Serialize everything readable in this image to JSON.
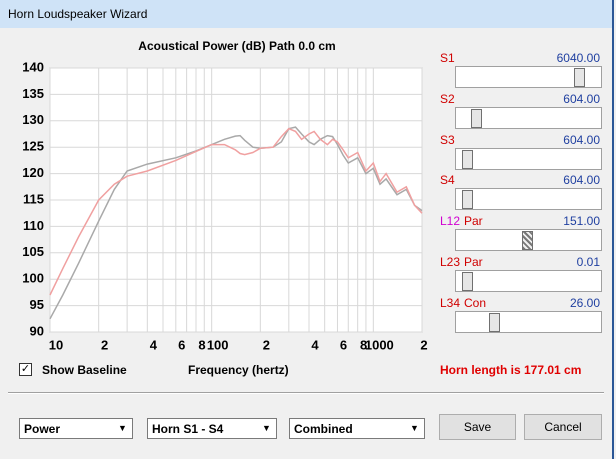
{
  "window": {
    "title": "Horn Loudspeaker Wizard"
  },
  "chart_data": {
    "type": "line",
    "title": "Acoustical Power (dB)   Path 0.0 cm",
    "x_label": "Frequency (hertz)",
    "x_log": true,
    "grid": true,
    "xlim": [
      10,
      2000
    ],
    "ylim": [
      90,
      140
    ],
    "xticks": [
      10,
      {
        "value": 20,
        "label": "2"
      },
      {
        "value": 40,
        "label": "4"
      },
      {
        "value": 60,
        "label": "6"
      },
      {
        "value": 80,
        "label": "8"
      },
      100,
      {
        "value": 200,
        "label": "2"
      },
      {
        "value": 400,
        "label": "4"
      },
      {
        "value": 600,
        "label": "6"
      },
      {
        "value": 800,
        "label": "8"
      },
      1000,
      {
        "value": 2000,
        "label": "2"
      }
    ],
    "minor_xticks": [
      30,
      50,
      70,
      90,
      300,
      500,
      700,
      900
    ],
    "yticks": [
      90,
      95,
      100,
      105,
      110,
      115,
      120,
      125,
      130,
      135,
      140
    ],
    "x": [
      10,
      12,
      15,
      20,
      25,
      30,
      40,
      60,
      80,
      100,
      120,
      140,
      150,
      160,
      180,
      200,
      240,
      270,
      300,
      330,
      360,
      400,
      430,
      470,
      520,
      560,
      600,
      650,
      700,
      800,
      900,
      1000,
      1100,
      1200,
      1400,
      1600,
      1800,
      2000
    ],
    "series": [
      {
        "color": "#a9a9a9",
        "values": [
          92.5,
          97,
          103,
          111,
          117,
          120.5,
          121.8,
          123,
          124.3,
          125.5,
          126.5,
          127.1,
          127.2,
          126.3,
          125,
          124.8,
          125,
          126,
          128.5,
          128.8,
          127.5,
          126,
          125.5,
          126.5,
          127.2,
          127,
          125.5,
          123.5,
          122,
          123,
          120,
          121,
          118,
          119,
          116,
          117,
          114,
          113
        ]
      },
      {
        "color": "#f0a0a0",
        "values": [
          97,
          102,
          108,
          115,
          118,
          119.5,
          120.5,
          122.5,
          124.2,
          125.5,
          125.5,
          124.5,
          123.8,
          123.6,
          124,
          124.8,
          125,
          127,
          128.5,
          128,
          126.5,
          127.5,
          128,
          126.5,
          125.5,
          126.5,
          126,
          124.5,
          123,
          124,
          120.5,
          122,
          118.5,
          120,
          116.5,
          117.5,
          114,
          112.5
        ]
      }
    ]
  },
  "sliders": [
    {
      "label": "S1",
      "value": "6040.00"
    },
    {
      "label": "S2",
      "value": "604.00"
    },
    {
      "label": "S3",
      "value": "604.00"
    },
    {
      "label": "S4",
      "value": "604.00"
    },
    {
      "label": "L12",
      "mode": "Par",
      "value": "151.00"
    },
    {
      "label": "L23",
      "mode": "Par",
      "value": "0.01"
    },
    {
      "label": "L34",
      "mode": "Con",
      "value": "26.00"
    }
  ],
  "show_baseline": "Show Baseline",
  "horn_length": "Horn length is 177.01 cm",
  "dropdowns": [
    "Power",
    "Horn S1 - S4",
    "Combined"
  ],
  "buttons": {
    "save": "Save",
    "cancel": "Cancel"
  }
}
